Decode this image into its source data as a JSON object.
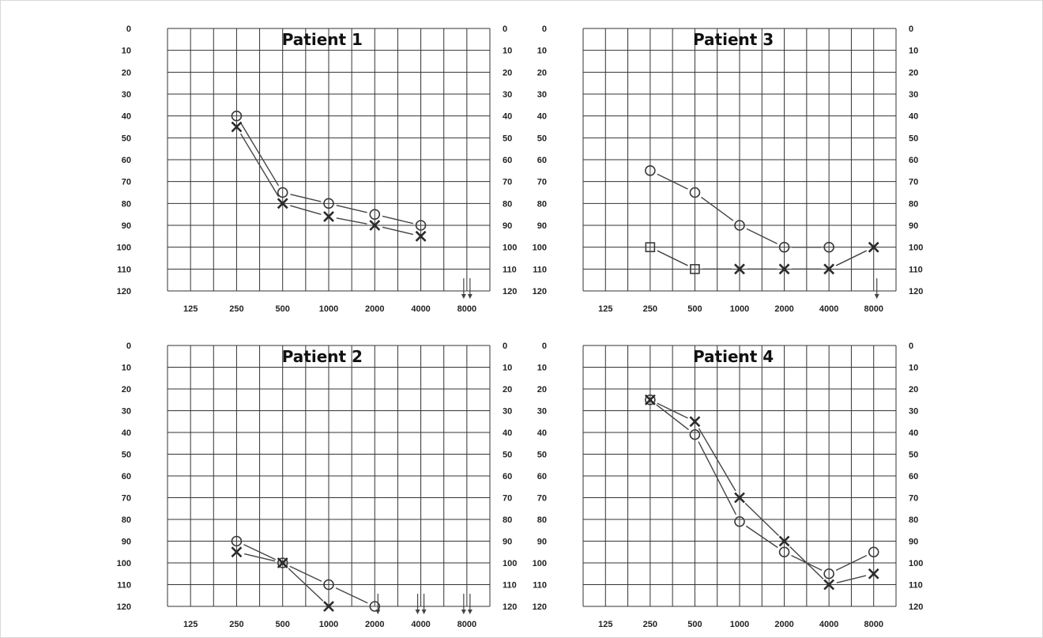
{
  "chart_data": [
    {
      "type": "line",
      "title": "Patient 1",
      "x": [
        125,
        250,
        500,
        1000,
        2000,
        4000,
        8000
      ],
      "x_tick_labels": [
        "125",
        "250",
        "500",
        "1000",
        "2000",
        "4000",
        "8000"
      ],
      "y_tick_labels": [
        "0",
        "10",
        "20",
        "30",
        "40",
        "50",
        "60",
        "70",
        "80",
        "90",
        "100",
        "110",
        "120"
      ],
      "ylim": [
        0,
        120
      ],
      "y_inverted": true,
      "grid": true,
      "series": [
        {
          "marker": "circle",
          "points": [
            [
              250,
              40
            ],
            [
              500,
              75
            ],
            [
              1000,
              80
            ],
            [
              2000,
              85
            ],
            [
              4000,
              90
            ]
          ],
          "no_response": [
            [
              8000,
              120
            ]
          ]
        },
        {
          "marker": "cross",
          "points": [
            [
              250,
              45
            ],
            [
              500,
              80
            ],
            [
              1000,
              86
            ],
            [
              2000,
              90
            ],
            [
              4000,
              95
            ]
          ],
          "no_response": [
            [
              8000,
              120
            ]
          ]
        }
      ]
    },
    {
      "type": "line",
      "title": "Patient 3",
      "x": [
        125,
        250,
        500,
        1000,
        2000,
        4000,
        8000
      ],
      "x_tick_labels": [
        "125",
        "250",
        "500",
        "1000",
        "2000",
        "4000",
        "8000"
      ],
      "y_tick_labels": [
        "0",
        "10",
        "20",
        "30",
        "40",
        "50",
        "60",
        "70",
        "80",
        "90",
        "100",
        "110",
        "120"
      ],
      "ylim": [
        0,
        120
      ],
      "y_inverted": true,
      "grid": true,
      "series": [
        {
          "marker": "circle",
          "points": [
            [
              250,
              65
            ],
            [
              500,
              75
            ],
            [
              1000,
              90
            ],
            [
              2000,
              100
            ],
            [
              4000,
              100
            ]
          ],
          "no_response": []
        },
        {
          "marker": "square-cross",
          "points": [
            [
              250,
              100
            ],
            [
              500,
              110
            ],
            [
              1000,
              110
            ],
            [
              2000,
              110
            ],
            [
              4000,
              110
            ],
            [
              8000,
              100
            ]
          ],
          "markers": [
            "square",
            "square",
            "cross",
            "cross",
            "cross",
            "cross"
          ],
          "no_response": [
            [
              8000,
              120
            ]
          ]
        }
      ]
    },
    {
      "type": "line",
      "title": "Patient 2",
      "x": [
        125,
        250,
        500,
        1000,
        2000,
        4000,
        8000
      ],
      "x_tick_labels": [
        "125",
        "250",
        "500",
        "1000",
        "2000",
        "4000",
        "8000"
      ],
      "y_tick_labels": [
        "0",
        "10",
        "20",
        "30",
        "40",
        "50",
        "60",
        "70",
        "80",
        "90",
        "100",
        "110",
        "120"
      ],
      "ylim": [
        0,
        120
      ],
      "y_inverted": true,
      "grid": true,
      "series": [
        {
          "marker": "circle",
          "points": [
            [
              250,
              90
            ],
            [
              500,
              100
            ],
            [
              1000,
              110
            ],
            [
              2000,
              120
            ]
          ],
          "no_response": [
            [
              4000,
              120
            ],
            [
              8000,
              120
            ]
          ]
        },
        {
          "marker": "cross",
          "points": [
            [
              250,
              95
            ],
            [
              500,
              100
            ],
            [
              1000,
              120
            ]
          ],
          "no_response": [
            [
              2000,
              120
            ],
            [
              4000,
              120
            ],
            [
              8000,
              120
            ]
          ]
        }
      ]
    },
    {
      "type": "line",
      "title": "Patient 4",
      "x": [
        125,
        250,
        500,
        1000,
        2000,
        4000,
        8000
      ],
      "x_tick_labels": [
        "125",
        "250",
        "500",
        "1000",
        "2000",
        "4000",
        "8000"
      ],
      "y_tick_labels": [
        "0",
        "10",
        "20",
        "30",
        "40",
        "50",
        "60",
        "70",
        "80",
        "90",
        "100",
        "110",
        "120"
      ],
      "ylim": [
        0,
        120
      ],
      "y_inverted": true,
      "grid": true,
      "series": [
        {
          "marker": "circle",
          "points": [
            [
              250,
              25
            ],
            [
              500,
              41
            ],
            [
              1000,
              81
            ],
            [
              2000,
              95
            ],
            [
              4000,
              105
            ],
            [
              8000,
              95
            ]
          ],
          "no_response": []
        },
        {
          "marker": "cross",
          "points": [
            [
              250,
              25
            ],
            [
              500,
              35
            ],
            [
              1000,
              70
            ],
            [
              2000,
              90
            ],
            [
              4000,
              110
            ],
            [
              8000,
              105
            ]
          ],
          "no_response": []
        }
      ]
    }
  ]
}
